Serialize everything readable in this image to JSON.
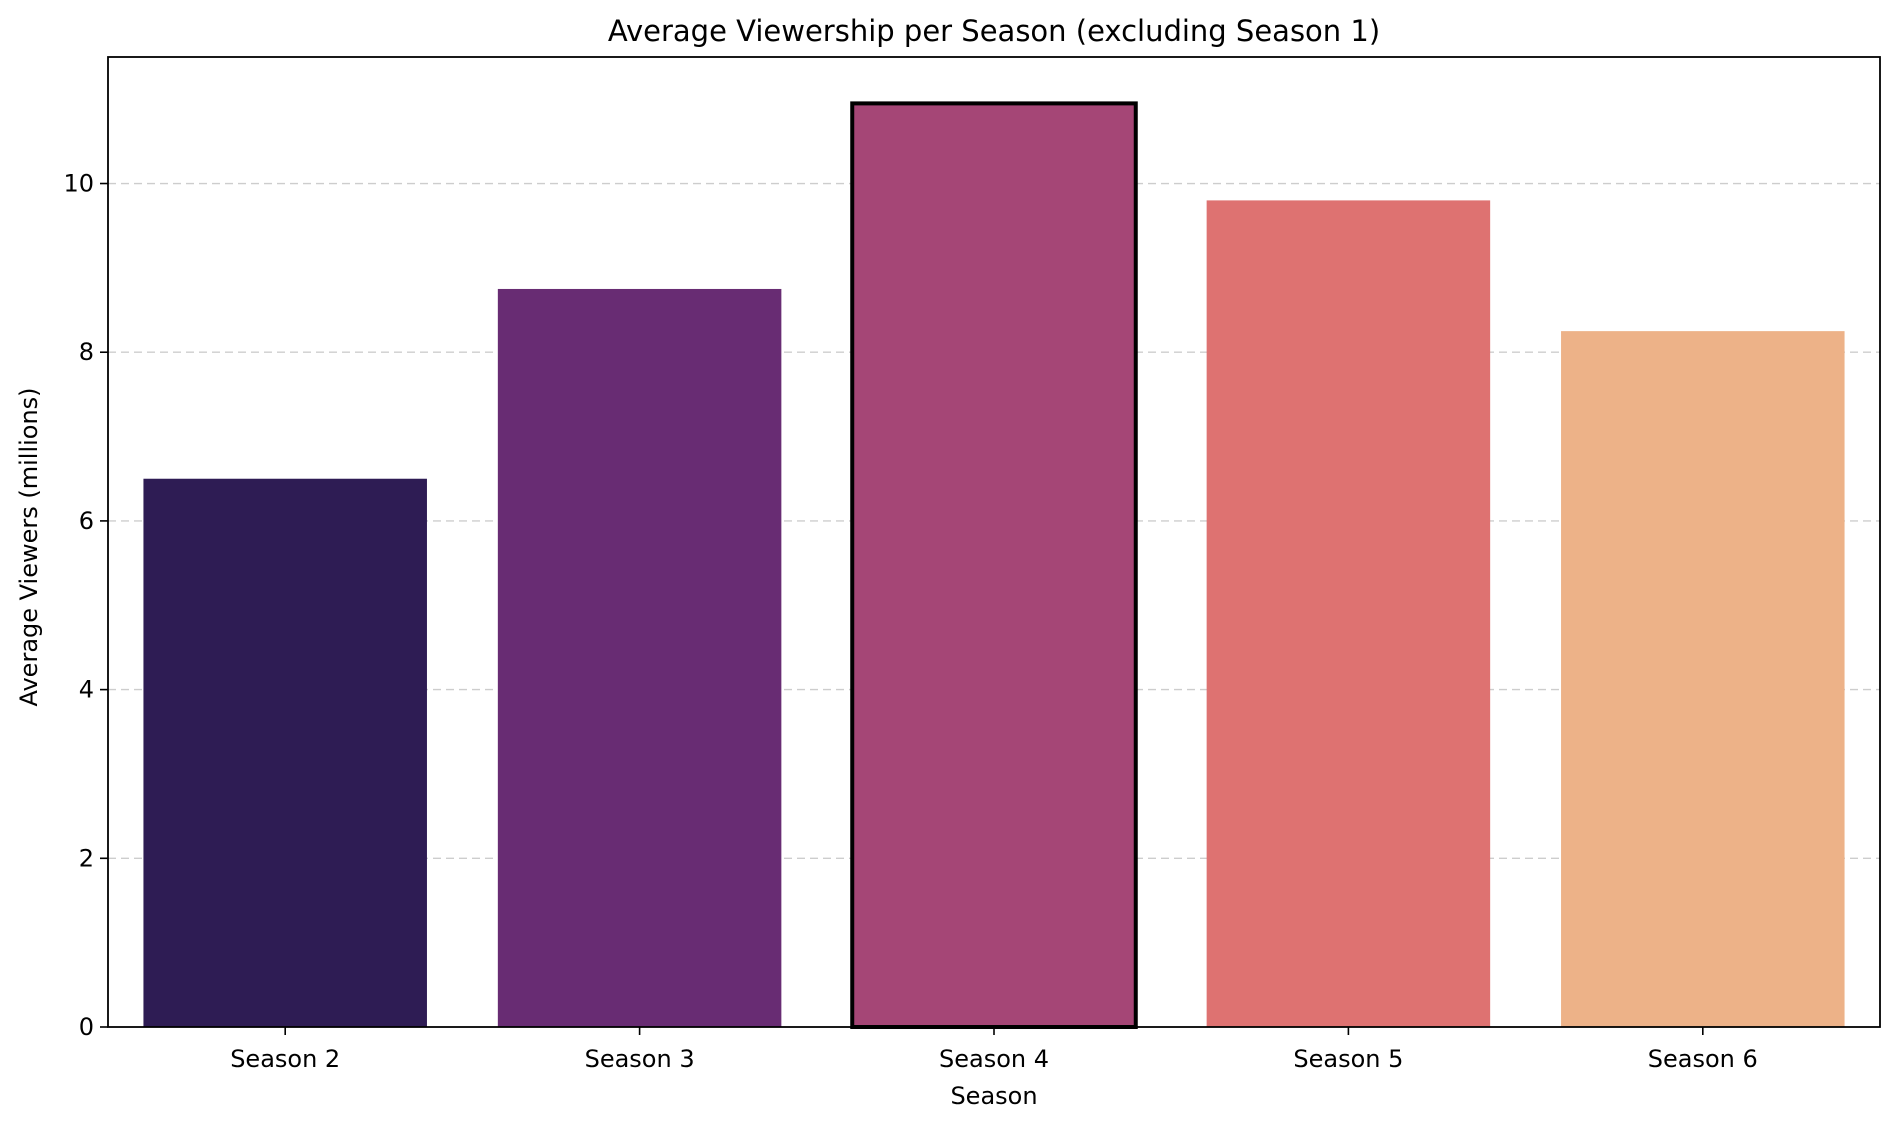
{
  "chart_data": {
    "type": "bar",
    "title": "Average Viewership per Season (excluding Season 1)",
    "xlabel": "Season",
    "ylabel": "Average Viewers (millions)",
    "categories": [
      "Season 2",
      "Season 3",
      "Season 4",
      "Season 5",
      "Season 6"
    ],
    "values": [
      6.5,
      8.75,
      10.95,
      9.8,
      8.25
    ],
    "colors": [
      "#2e1c54",
      "#682c73",
      "#a54676",
      "#de7271",
      "#edb288"
    ],
    "highlight_category": "Season 4",
    "highlight_edge_color": "#000000",
    "ylim": [
      0,
      11.5
    ],
    "yticks": [
      0,
      2,
      4,
      6,
      8,
      10
    ],
    "grid": "y-axis dashed",
    "legend": "none"
  }
}
